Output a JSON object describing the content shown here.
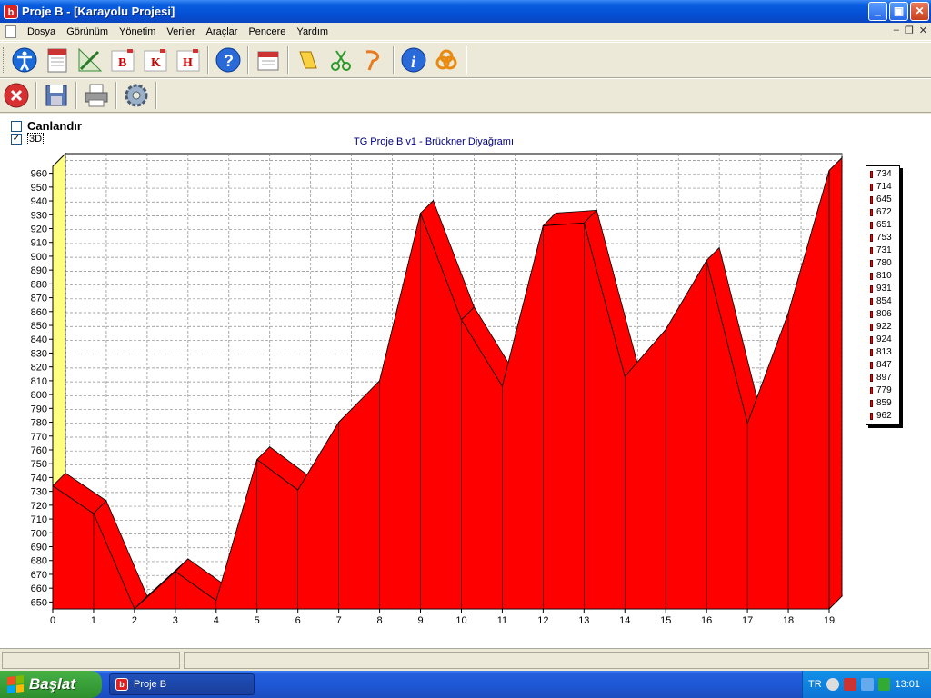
{
  "window": {
    "title": "Proje B - [Karayolu Projesi]",
    "app_icon_letter": "b",
    "minimize": "_",
    "maximize": "▣",
    "close": "✕"
  },
  "menu": {
    "items": [
      "Dosya",
      "Görünüm",
      "Yönetim",
      "Veriler",
      "Araçlar",
      "Pencere",
      "Yardım"
    ],
    "mdi_min": "–",
    "mdi_restore": "❐",
    "mdi_close": "✕"
  },
  "toolbar1": {
    "icons": [
      "accessibility-icon",
      "document-icon",
      "ruler-icon",
      "b-icon",
      "k-icon",
      "h-icon",
      "help-icon",
      "calendar-icon",
      "cut-icon",
      "scissors-icon",
      "paste-icon",
      "info-icon",
      "network-icon"
    ],
    "b_label": "B",
    "k_label": "K",
    "h_label": "H"
  },
  "toolbar2": {
    "icons": [
      "close-circle-icon",
      "save-icon",
      "print-icon",
      "settings-gear-icon"
    ]
  },
  "options": {
    "animate_label": "Canlandır",
    "animate_checked": false,
    "threed_label": "3D",
    "threed_checked": true,
    "check_mark": "✓"
  },
  "chart_data": {
    "type": "area",
    "title": "TG Proje B v1 - Brückner Diyağramı",
    "x": [
      0,
      1,
      2,
      3,
      4,
      5,
      6,
      7,
      8,
      9,
      10,
      11,
      12,
      13,
      14,
      15,
      16,
      17,
      18,
      19
    ],
    "values": [
      734,
      714,
      645,
      672,
      651,
      753,
      731,
      780,
      810,
      931,
      854,
      806,
      922,
      924,
      813,
      847,
      897,
      779,
      859,
      962
    ],
    "ylim": [
      645,
      965
    ],
    "yticks": [
      650,
      660,
      670,
      680,
      690,
      700,
      710,
      720,
      730,
      740,
      750,
      760,
      770,
      780,
      790,
      800,
      810,
      820,
      830,
      840,
      850,
      860,
      870,
      880,
      890,
      900,
      910,
      920,
      930,
      940,
      950,
      960
    ],
    "grid": true,
    "three_d": true,
    "legend_position": "right",
    "colors": {
      "fill": "#ff0000",
      "wall": "#ffff80",
      "grid": "#888888",
      "title": "#000080"
    }
  },
  "taskbar": {
    "start_label": "Başlat",
    "task_label": "Proje B",
    "lang": "TR",
    "clock": "13:01"
  }
}
